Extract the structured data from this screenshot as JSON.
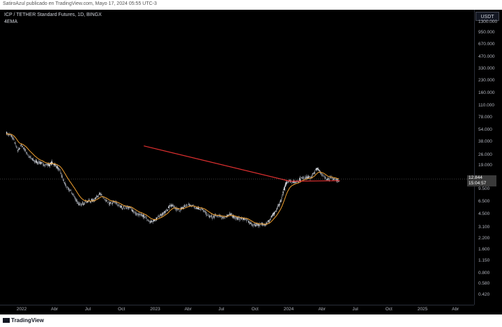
{
  "header": {
    "publisher": "SatiroAzul publicado en TradingView.com, Mayo 17, 2024 05:55 UTC-3",
    "symbol": "ICP / TETHER Standard Futures, 1D, BINGX",
    "indicator": "4EMA"
  },
  "price_axis": {
    "currency": "USDT",
    "last_price": "12.844",
    "countdown": "15:04:57"
  },
  "footer": {
    "brand": "TradingView"
  },
  "colors": {
    "background": "#000000",
    "candle_up": "#dfe3ea",
    "candle_down": "#8a8f99",
    "ema_line": "#f0a030",
    "trend_line": "#e03030"
  },
  "chart_data": {
    "type": "candlestick",
    "title": "ICP / TETHER Standard Futures, 1D, BINGX",
    "y_scale": "log",
    "y_ticks": [
      {
        "value": 1300,
        "label": "1300.000"
      },
      {
        "value": 950,
        "label": "950.000"
      },
      {
        "value": 670,
        "label": "670.000"
      },
      {
        "value": 470,
        "label": "470.000"
      },
      {
        "value": 330,
        "label": "330.000"
      },
      {
        "value": 230,
        "label": "230.000"
      },
      {
        "value": 160,
        "label": "160.000"
      },
      {
        "value": 110,
        "label": "110.000"
      },
      {
        "value": 78,
        "label": "78.000"
      },
      {
        "value": 54,
        "label": "54.000"
      },
      {
        "value": 38,
        "label": "38.000"
      },
      {
        "value": 26,
        "label": "26.000"
      },
      {
        "value": 19,
        "label": "19.000"
      },
      {
        "value": 9.5,
        "label": "9.500"
      },
      {
        "value": 6.5,
        "label": "6.500"
      },
      {
        "value": 4.5,
        "label": "4.500"
      },
      {
        "value": 3.1,
        "label": "3.100"
      },
      {
        "value": 2.2,
        "label": "2.200"
      },
      {
        "value": 1.6,
        "label": "1.600"
      },
      {
        "value": 1.15,
        "label": "1.150"
      },
      {
        "value": 0.8,
        "label": "0.800"
      },
      {
        "value": 0.58,
        "label": "0.580"
      },
      {
        "value": 0.42,
        "label": "0.420"
      }
    ],
    "x_ticks": [
      "2022",
      "Abr",
      "Jul",
      "Oct",
      "2023",
      "Abr",
      "Jul",
      "Oct",
      "2024",
      "Abr",
      "Jul",
      "Oct",
      "2025",
      "Abr"
    ],
    "x_range": [
      "2021-11-20",
      "2025-06-30"
    ],
    "price_path": [
      [
        "2021-11-20",
        52
      ],
      [
        "2021-12-05",
        44
      ],
      [
        "2021-12-20",
        30
      ],
      [
        "2022-01-01",
        36
      ],
      [
        "2022-01-20",
        24
      ],
      [
        "2022-02-10",
        22
      ],
      [
        "2022-03-01",
        19
      ],
      [
        "2022-03-25",
        21
      ],
      [
        "2022-04-15",
        16
      ],
      [
        "2022-05-05",
        10
      ],
      [
        "2022-05-20",
        8
      ],
      [
        "2022-06-10",
        6
      ],
      [
        "2022-07-01",
        6.5
      ],
      [
        "2022-08-01",
        8
      ],
      [
        "2022-08-25",
        6.5
      ],
      [
        "2022-09-20",
        6
      ],
      [
        "2022-10-20",
        5.4
      ],
      [
        "2022-11-15",
        4.6
      ],
      [
        "2022-12-10",
        3.9
      ],
      [
        "2022-12-30",
        3.7
      ],
      [
        "2023-01-20",
        4.6
      ],
      [
        "2023-02-10",
        5.8
      ],
      [
        "2023-03-01",
        5.2
      ],
      [
        "2023-03-20",
        5.6
      ],
      [
        "2023-04-15",
        6.0
      ],
      [
        "2023-05-10",
        5.0
      ],
      [
        "2023-06-10",
        4.1
      ],
      [
        "2023-07-15",
        4.4
      ],
      [
        "2023-08-20",
        4.1
      ],
      [
        "2023-09-20",
        3.5
      ],
      [
        "2023-10-15",
        3.2
      ],
      [
        "2023-11-05",
        3.7
      ],
      [
        "2023-11-25",
        4.6
      ],
      [
        "2023-12-10",
        7.0
      ],
      [
        "2023-12-25",
        11.5
      ],
      [
        "2024-01-15",
        12
      ],
      [
        "2024-02-10",
        13
      ],
      [
        "2024-03-01",
        14
      ],
      [
        "2024-03-20",
        17
      ],
      [
        "2024-04-10",
        13.5
      ],
      [
        "2024-05-01",
        12.5
      ],
      [
        "2024-05-17",
        12.844
      ]
    ],
    "series": [
      {
        "name": "4EMA",
        "type": "line"
      }
    ],
    "trend_line": {
      "start": [
        "2022-12-01",
        34
      ],
      "end": [
        "2024-01-05",
        12
      ]
    },
    "support_line": {
      "start": [
        "2024-01-05",
        12
      ],
      "end": [
        "2024-05-20",
        12.2
      ]
    },
    "last_price": 12.844
  }
}
